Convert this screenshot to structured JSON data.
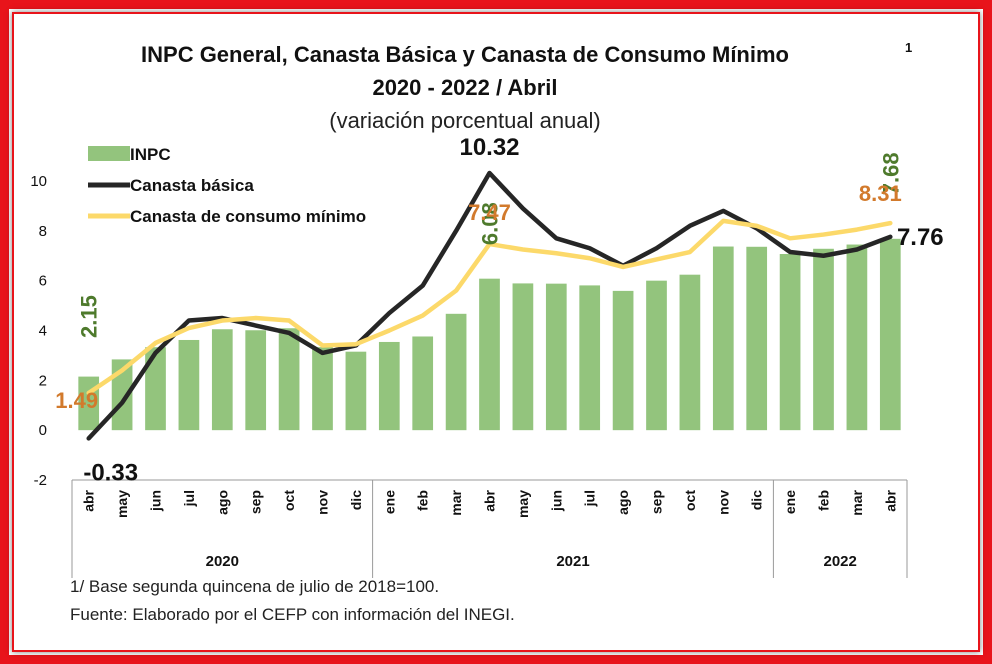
{
  "chart_data": {
    "type": "bar+line",
    "title_line1": "INPC General, Canasta Básica  y Canasta de Consumo Mínimo",
    "title_sup": "1",
    "title_line2": "2020 - 2022 / Abril",
    "subtitle": "(variación porcentual anual)",
    "ylim": [
      -2,
      10
    ],
    "yticks": [
      "-2",
      "0",
      "2",
      "4",
      "6",
      "8",
      "10"
    ],
    "categories": [
      "abr",
      "may",
      "jun",
      "jul",
      "ago",
      "sep",
      "oct",
      "nov",
      "dic",
      "ene",
      "feb",
      "mar",
      "abr",
      "may",
      "jun",
      "jul",
      "ago",
      "sep",
      "oct",
      "nov",
      "dic",
      "ene",
      "feb",
      "mar",
      "abr"
    ],
    "years": [
      {
        "label": "2020",
        "count": 9
      },
      {
        "label": "2021",
        "count": 12
      },
      {
        "label": "2022",
        "count": 4
      }
    ],
    "series": [
      {
        "name": "INPC",
        "kind": "bar",
        "color": "#93c47d",
        "values": [
          2.15,
          2.84,
          3.33,
          3.62,
          4.05,
          4.01,
          4.09,
          3.33,
          3.15,
          3.54,
          3.76,
          4.67,
          6.08,
          5.89,
          5.88,
          5.81,
          5.59,
          6.0,
          6.24,
          7.37,
          7.36,
          7.07,
          7.28,
          7.45,
          7.68
        ]
      },
      {
        "name": "Canasta básica",
        "kind": "line",
        "color": "#262626",
        "values": [
          -0.33,
          1.1,
          3.1,
          4.4,
          4.5,
          4.2,
          3.9,
          3.1,
          3.4,
          4.7,
          5.8,
          8.0,
          10.32,
          8.9,
          7.7,
          7.3,
          6.6,
          7.3,
          8.2,
          8.8,
          8.1,
          7.15,
          7.0,
          7.25,
          7.76
        ]
      },
      {
        "name": "Canasta de consumo mínimo",
        "kind": "line",
        "color": "#fcd96a",
        "values": [
          1.49,
          2.4,
          3.5,
          4.1,
          4.4,
          4.5,
          4.4,
          3.4,
          3.45,
          4.0,
          4.6,
          5.6,
          7.47,
          7.25,
          7.1,
          6.9,
          6.55,
          6.85,
          7.15,
          8.4,
          8.2,
          7.7,
          7.85,
          8.05,
          8.31
        ]
      }
    ],
    "annotations": [
      {
        "text": "2.15",
        "series": 0,
        "index": 0,
        "color": "#4e7a2c",
        "rotate": true
      },
      {
        "text": "6.08",
        "series": 0,
        "index": 12,
        "color": "#4e7a2c",
        "rotate": true
      },
      {
        "text": "7.68",
        "series": 0,
        "index": 24,
        "color": "#4e7a2c",
        "rotate": true
      },
      {
        "text": "-0.33",
        "series": 1,
        "index": 0,
        "color": "#111111",
        "rotate": false
      },
      {
        "text": "10.32",
        "series": 1,
        "index": 12,
        "color": "#111111",
        "rotate": false
      },
      {
        "text": "7.76",
        "series": 1,
        "index": 24,
        "color": "#111111",
        "rotate": false
      },
      {
        "text": "1.49",
        "series": 2,
        "index": 0,
        "color": "#d27a2c",
        "rotate": false
      },
      {
        "text": "7.47",
        "series": 2,
        "index": 12,
        "color": "#d27a2c",
        "rotate": false
      },
      {
        "text": "8.31",
        "series": 2,
        "index": 24,
        "color": "#d27a2c",
        "rotate": false
      }
    ],
    "legend": {
      "placement": "top-left"
    },
    "grid": false
  },
  "notes": [
    "1/ Base segunda quincena de julio de 2018=100.",
    "Fuente: Elaborado por el CEFP con información del INEGI."
  ]
}
